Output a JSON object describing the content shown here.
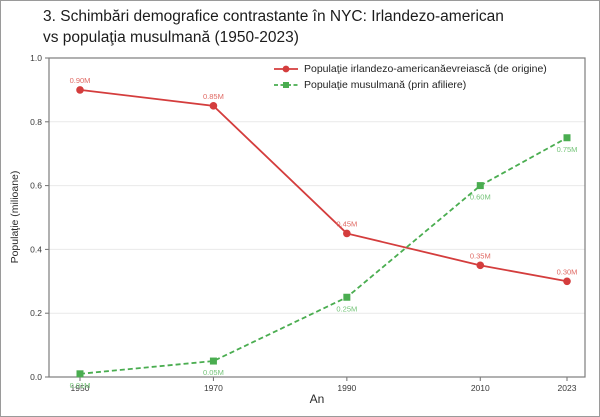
{
  "title": {
    "line1": "3. Schimbări demografice contrastante în NYC: Irlandezo-american",
    "line2": "vs populaţia musulmană (1950-2023)"
  },
  "chart_data": {
    "type": "line",
    "x": [
      1950,
      1970,
      1990,
      2010,
      2023
    ],
    "xtick_labels": [
      "1950",
      "1970",
      "1990",
      "2010",
      "2023"
    ],
    "series": [
      {
        "name": "Populaţie irlandezo-americanăevreiască (de origine)",
        "values": [
          0.9,
          0.85,
          0.45,
          0.35,
          0.3
        ],
        "point_labels": [
          "0.90M",
          "0.85M",
          "0.45M",
          "0.35M",
          "0.30M"
        ],
        "color": "#d43d3d",
        "label_color": "#e06a64",
        "line_style": "solid",
        "marker": "circle",
        "label_position": "above"
      },
      {
        "name": "Populaţie musulmană (prin afiliere)",
        "values": [
          0.01,
          0.05,
          0.25,
          0.6,
          0.75
        ],
        "point_labels": [
          "0.01M",
          "0.05M",
          "0.25M",
          "0.60M",
          "0.75M"
        ],
        "color": "#4aad50",
        "label_color": "#74c478",
        "line_style": "dashed",
        "marker": "square",
        "label_position": "below"
      }
    ],
    "xlabel": "An",
    "ylabel": "Populaţie (milioane)",
    "xlim": [
      1950,
      2023
    ],
    "ylim": [
      0.0,
      1.0
    ],
    "yticks": [
      0.0,
      0.2,
      0.4,
      0.6,
      0.8,
      1.0
    ],
    "ytick_labels": [
      "0.0",
      "0.2",
      "0.4",
      "0.6",
      "0.8",
      "1.0"
    ],
    "grid": true,
    "legend_position": "top-right"
  }
}
